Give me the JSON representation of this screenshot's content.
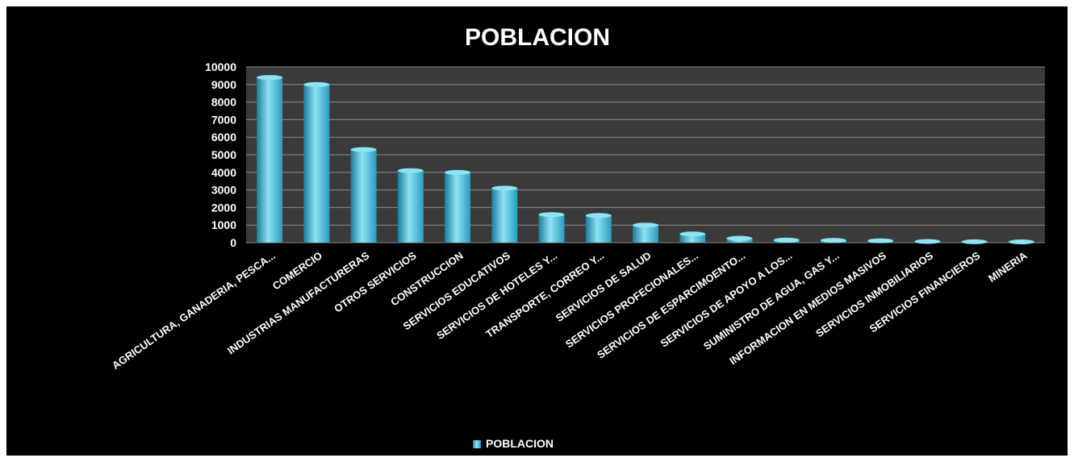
{
  "chart_data": {
    "type": "bar",
    "title": "POBLACION",
    "categories": [
      "AGRICULTURA, GANADERIA, PESCA...",
      "COMERCIO",
      "INDUSTRIAS MANUFACTURERAS",
      "OTROS SERVICIOS",
      "CONSTRUCCION",
      "SERVICIOS EDUCATIVOS",
      "SERVICIOS DE HOTELES Y...",
      "TRANSPORTE, CORREO Y...",
      "SERVICIOS DE SALUD",
      "SERVICIOS PROFECIONALES...",
      "SERVICIOS DE ESPARCIMOENTO...",
      "SERVICIOS DE APOYO A LOS...",
      "SUMINISTRO DE AGUA, GAS Y...",
      "INFORMACION EN MEDIOS MASIVOS",
      "SERVICIOS INMOBILIARIOS",
      "SERVICIOS FINANCIEROS",
      "MINERIA"
    ],
    "series": [
      {
        "name": "POBLACION",
        "values": [
          9400,
          9000,
          5300,
          4100,
          4000,
          3100,
          1600,
          1550,
          1000,
          500,
          250,
          150,
          130,
          110,
          70,
          50,
          40
        ]
      }
    ],
    "ylim": [
      0,
      10000
    ],
    "yticks": [
      "0",
      "1000",
      "2000",
      "3000",
      "4000",
      "5000",
      "6000",
      "7000",
      "8000",
      "9000",
      "10000"
    ],
    "grid": true,
    "legend": "bottom",
    "colors": {
      "bar": "#3fb8d6",
      "bar_light": "#8ee3f5",
      "bar_dark": "#1a7d99",
      "plot_bg": "#3a3a3a",
      "grid": "#8a8a8a",
      "background": "#000000"
    }
  }
}
